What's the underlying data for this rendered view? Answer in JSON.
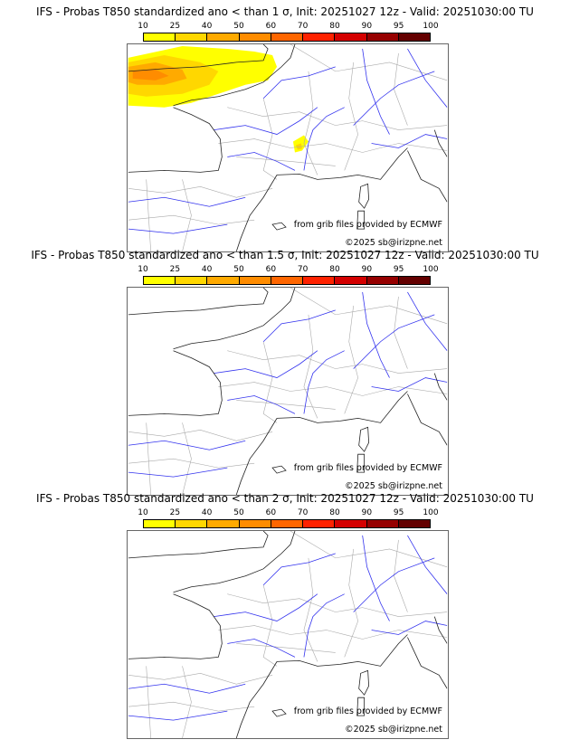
{
  "colorbar": {
    "ticks": [
      "10",
      "25",
      "40",
      "50",
      "60",
      "70",
      "80",
      "90",
      "95",
      "100"
    ],
    "colors": [
      "#ffff00",
      "#ffd700",
      "#ffaa00",
      "#ff8c00",
      "#ff6600",
      "#ff2200",
      "#d40000",
      "#960000",
      "#640000"
    ]
  },
  "panels": [
    {
      "title": "IFS - Probas T850  standardized ano < than 1 σ, Init: 20251027 12z - Valid: 20251030:00 TU",
      "has_anomaly": true
    },
    {
      "title": "IFS - Probas T850  standardized ano < than 1.5 σ, Init: 20251027 12z - Valid: 20251030:00 TU",
      "has_anomaly": false
    },
    {
      "title": "IFS - Probas T850  standardized ano < than 2 σ, Init: 20251027 12z - Valid: 20251030:00 TU",
      "has_anomaly": false
    }
  ],
  "credits": {
    "source": "from grib files provided by ECMWF",
    "copyright": "©2025 sb@irizpne.net"
  }
}
